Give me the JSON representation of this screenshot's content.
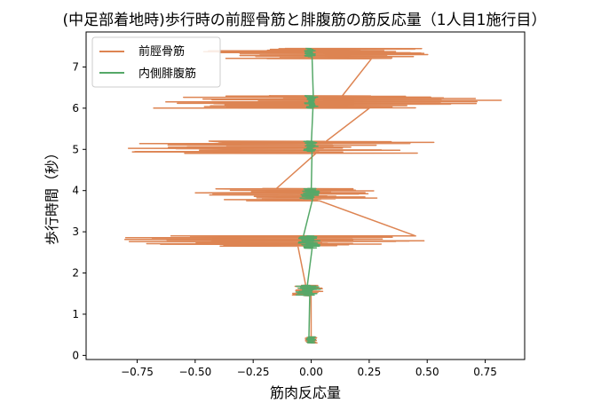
{
  "chart_data": {
    "type": "line",
    "title": "(中足部着地時)歩行時の前脛骨筋と腓腹筋の筋反応量（1人目1施行目）",
    "xlabel": "筋肉反応量",
    "ylabel": "歩行時間（秒）",
    "xlim": [
      -0.97,
      0.92
    ],
    "ylim": [
      -0.1,
      7.85
    ],
    "xticks": [
      -0.75,
      -0.5,
      -0.25,
      0.0,
      0.25,
      0.5,
      0.75
    ],
    "xtick_labels": [
      "−0.75",
      "−0.50",
      "−0.25",
      "0.00",
      "0.25",
      "0.50",
      "0.75"
    ],
    "yticks": [
      0,
      1,
      2,
      3,
      4,
      5,
      6,
      7
    ],
    "ytick_labels": [
      "0",
      "1",
      "2",
      "3",
      "4",
      "5",
      "6",
      "7"
    ],
    "grid": false,
    "legend": "upper-left",
    "series": [
      {
        "name": "前脛骨筋",
        "color": "#dd8452",
        "bursts": [
          {
            "t_start": 0.3,
            "t_end": 0.45,
            "min": -0.03,
            "max": 0.03
          },
          {
            "t_start": 1.45,
            "t_end": 1.7,
            "min": -0.09,
            "max": 0.05
          },
          {
            "t_start": 2.65,
            "t_end": 2.9,
            "min": -0.9,
            "max": 0.55
          },
          {
            "t_start": 3.75,
            "t_end": 4.05,
            "min": -0.52,
            "max": 0.35
          },
          {
            "t_start": 4.9,
            "t_end": 5.2,
            "min": -0.85,
            "max": 0.55
          },
          {
            "t_start": 6.0,
            "t_end": 6.3,
            "min": -0.7,
            "max": 0.85
          },
          {
            "t_start": 7.2,
            "t_end": 7.45,
            "min": -0.5,
            "max": 0.55
          }
        ],
        "transition_points": [
          [
            0.0,
            0.35
          ],
          [
            -0.02,
            1.6
          ],
          [
            0.45,
            2.9
          ],
          [
            -0.2,
            3.8
          ],
          [
            0.03,
            5.05
          ],
          [
            0.12,
            6.2
          ],
          [
            -0.12,
            7.3
          ]
        ]
      },
      {
        "name": "内側腓腹筋",
        "color": "#55a868",
        "bursts": [
          {
            "t_start": 0.3,
            "t_end": 0.45,
            "min": -0.02,
            "max": 0.02
          },
          {
            "t_start": 1.45,
            "t_end": 1.7,
            "min": -0.07,
            "max": 0.04
          },
          {
            "t_start": 2.6,
            "t_end": 2.9,
            "min": -0.06,
            "max": 0.04
          },
          {
            "t_start": 3.8,
            "t_end": 4.05,
            "min": -0.05,
            "max": 0.04
          },
          {
            "t_start": 4.95,
            "t_end": 5.2,
            "min": -0.04,
            "max": 0.03
          },
          {
            "t_start": 6.0,
            "t_end": 6.3,
            "min": -0.03,
            "max": 0.03
          },
          {
            "t_start": 7.25,
            "t_end": 7.45,
            "min": -0.03,
            "max": 0.02
          }
        ],
        "transition_points": [
          [
            -0.01,
            0.35
          ],
          [
            -0.02,
            1.55
          ],
          [
            -0.04,
            2.75
          ],
          [
            0.0,
            3.9
          ],
          [
            0.0,
            5.05
          ],
          [
            0.01,
            6.15
          ],
          [
            0.01,
            7.3
          ]
        ]
      }
    ]
  }
}
